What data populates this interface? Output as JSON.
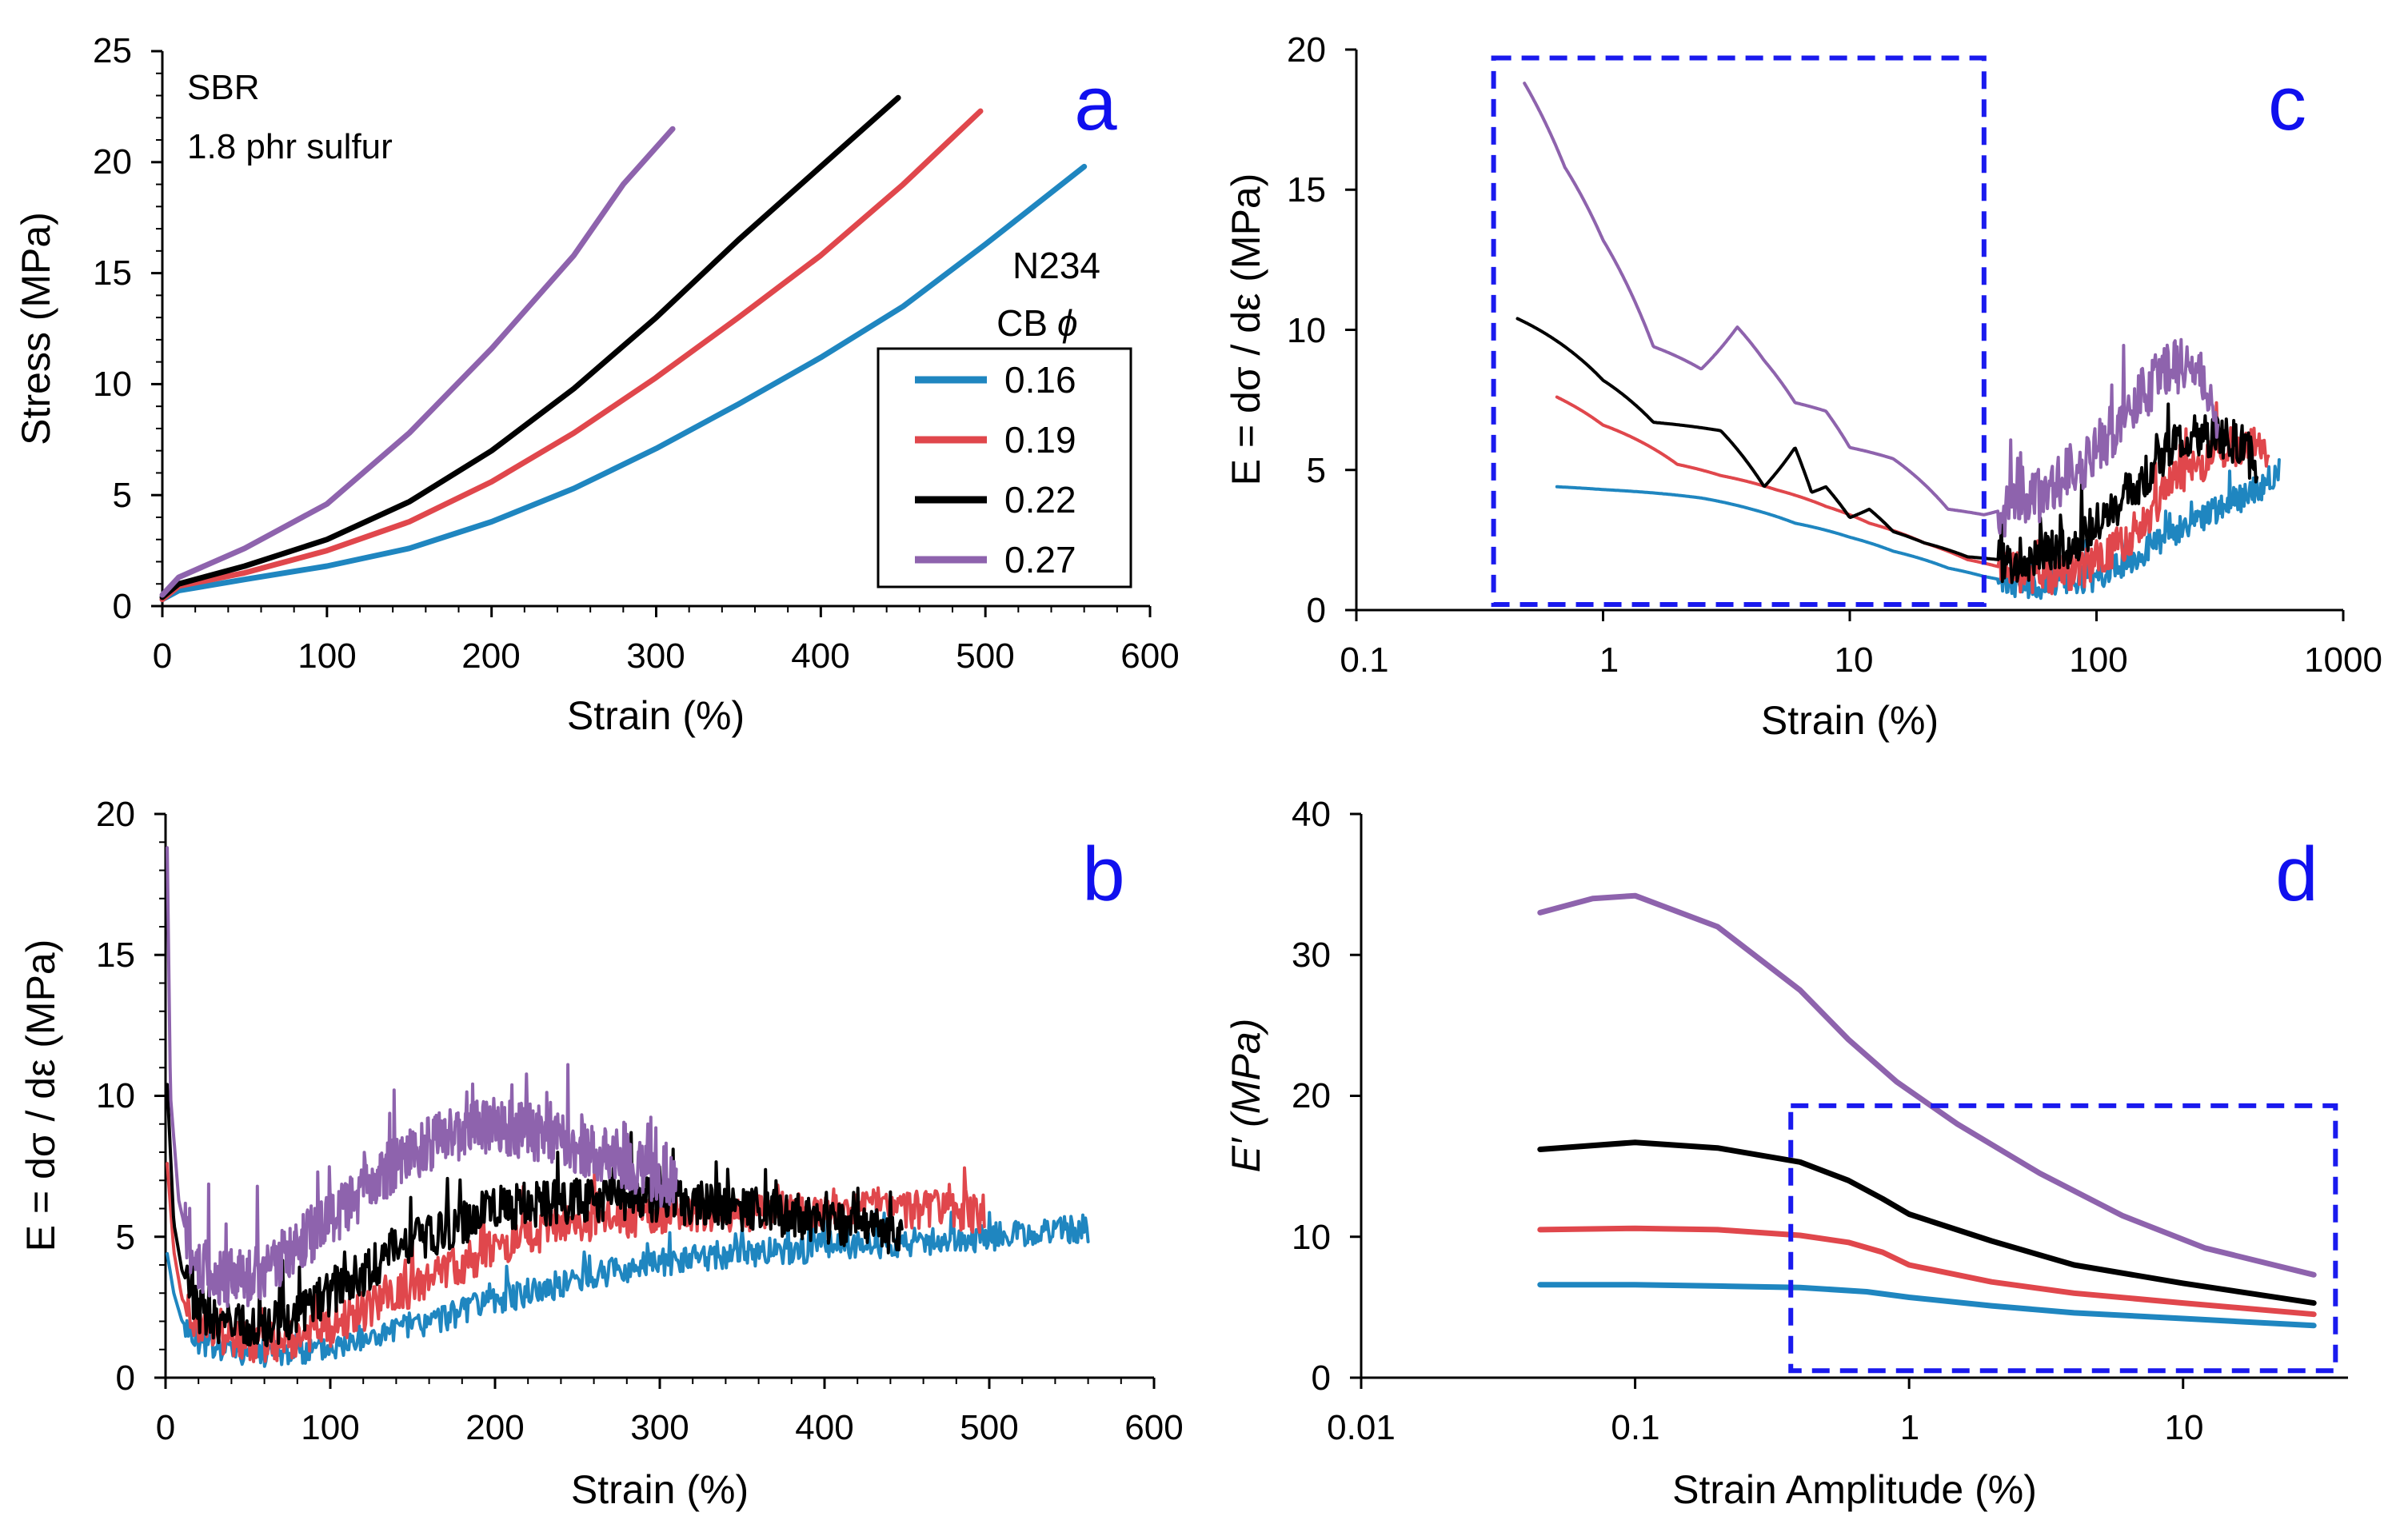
{
  "colors": {
    "0.16": "#1f86c0",
    "0.19": "#e0474c",
    "0.22": "#000000",
    "0.27": "#8e63ad",
    "box": "#1a1aee",
    "letter": "#1010ee"
  },
  "legend": {
    "header_line1": "N234",
    "header_line2": "CB",
    "header_symbol": "ϕ",
    "entries": [
      "0.16",
      "0.19",
      "0.22",
      "0.27"
    ]
  },
  "chart_data": [
    {
      "id": "a",
      "panel_label": "a",
      "type": "line",
      "xlabel": "Strain (%)",
      "ylabel": "Stress (MPa)",
      "xlim": [
        0,
        600
      ],
      "ylim": [
        0,
        25
      ],
      "xticks": [
        "0",
        "100",
        "200",
        "300",
        "400",
        "500",
        "600"
      ],
      "yticks": [
        "0",
        "5",
        "10",
        "15",
        "20",
        "25"
      ],
      "annotations": [
        "SBR",
        "1.8 phr sulfur"
      ],
      "series": [
        {
          "name": "0.16",
          "x": [
            0,
            10,
            50,
            100,
            150,
            200,
            250,
            300,
            350,
            400,
            450,
            500,
            560
          ],
          "y": [
            0.3,
            0.7,
            1.2,
            1.8,
            2.6,
            3.8,
            5.3,
            7.1,
            9.1,
            11.2,
            13.5,
            16.3,
            19.8
          ]
        },
        {
          "name": "0.19",
          "x": [
            0,
            10,
            50,
            100,
            150,
            200,
            250,
            300,
            350,
            400,
            450,
            497
          ],
          "y": [
            0.3,
            0.9,
            1.5,
            2.5,
            3.8,
            5.6,
            7.8,
            10.3,
            13.0,
            15.8,
            19.0,
            22.3
          ]
        },
        {
          "name": "0.22",
          "x": [
            0,
            10,
            50,
            100,
            150,
            200,
            250,
            300,
            350,
            400,
            447
          ],
          "y": [
            0.4,
            1.0,
            1.8,
            3.0,
            4.7,
            7.0,
            9.8,
            13.0,
            16.5,
            19.8,
            22.9
          ]
        },
        {
          "name": "0.27",
          "x": [
            0,
            10,
            50,
            100,
            150,
            200,
            250,
            280,
            310
          ],
          "y": [
            0.5,
            1.3,
            2.6,
            4.6,
            7.8,
            11.6,
            15.8,
            19.0,
            21.5
          ]
        }
      ]
    },
    {
      "id": "b",
      "panel_label": "b",
      "type": "line",
      "xlabel": "Strain (%)",
      "ylabel": "E = dσ / dε (MPa)",
      "xlim": [
        0,
        600
      ],
      "ylim": [
        0,
        20
      ],
      "xticks": [
        "0",
        "100",
        "200",
        "300",
        "400",
        "500",
        "600"
      ],
      "yticks": [
        "0",
        "5",
        "10",
        "15",
        "20"
      ],
      "series": [
        {
          "name": "0.16",
          "x": [
            1,
            5,
            10,
            20,
            40,
            60,
            80,
            100,
            150,
            200,
            250,
            300,
            350,
            400,
            450,
            500,
            540,
            560
          ],
          "y": [
            4.4,
            3.0,
            2.0,
            1.3,
            1.0,
            0.9,
            0.9,
            1.1,
            1.8,
            2.7,
            3.5,
            4.1,
            4.4,
            4.6,
            4.8,
            5.0,
            5.2,
            5.3
          ],
          "noise": 0.5
        },
        {
          "name": "0.19",
          "x": [
            1,
            5,
            10,
            20,
            40,
            60,
            80,
            100,
            150,
            200,
            250,
            300,
            350,
            400,
            450,
            497
          ],
          "y": [
            7.6,
            4.5,
            2.8,
            1.8,
            1.3,
            1.2,
            1.4,
            1.8,
            3.2,
            4.6,
            5.5,
            5.8,
            5.9,
            6.0,
            6.0,
            5.8
          ],
          "noise": 0.7
        },
        {
          "name": "0.22",
          "x": [
            1,
            5,
            10,
            20,
            40,
            60,
            80,
            100,
            150,
            200,
            250,
            300,
            350,
            400,
            447
          ],
          "y": [
            10.4,
            5.5,
            3.8,
            2.4,
            1.8,
            1.8,
            2.3,
            3.0,
            4.8,
            6.0,
            6.3,
            6.3,
            6.0,
            5.6,
            5.0
          ],
          "noise": 0.8
        },
        {
          "name": "0.27",
          "x": [
            1,
            3,
            8,
            15,
            30,
            50,
            70,
            100,
            130,
            170,
            200,
            230,
            260,
            290,
            310
          ],
          "y": [
            18.8,
            10.0,
            6.3,
            4.5,
            3.5,
            3.5,
            4.2,
            5.6,
            7.2,
            8.6,
            9.0,
            8.6,
            8.0,
            7.3,
            6.8
          ],
          "noise": 1.0
        }
      ]
    },
    {
      "id": "c",
      "panel_label": "c",
      "type": "line",
      "xlabel": "Strain (%)",
      "ylabel": "E = dσ / dε (MPa)",
      "xscale": "log",
      "xlim": [
        0.1,
        1000
      ],
      "ylim": [
        0,
        20
      ],
      "xticks": [
        "0.1",
        "1",
        "10",
        "100",
        "1000"
      ],
      "yticks": [
        "0",
        "5",
        "10",
        "15",
        "20"
      ],
      "highlight_box": {
        "x": [
          0.36,
          35
        ],
        "y": [
          0.2,
          19.7
        ]
      },
      "series": [
        {
          "name": "0.16",
          "x": [
            0.65,
            1,
            2,
            2.5,
            4,
            6,
            10,
            15,
            25,
            35,
            50,
            70,
            100,
            150,
            200,
            300,
            400,
            500,
            550
          ],
          "y": [
            4.4,
            4.3,
            4.1,
            4.0,
            3.6,
            3.1,
            2.6,
            2.1,
            1.5,
            1.2,
            0.9,
            0.9,
            1.2,
            2.0,
            2.7,
            3.5,
            4.1,
            4.6,
            5.0
          ],
          "noise_from": 40,
          "noise": 0.5
        },
        {
          "name": "0.19",
          "x": [
            0.65,
            1,
            2,
            3,
            5,
            8,
            12,
            20,
            30,
            50,
            70,
            100,
            150,
            200,
            300,
            400,
            497
          ],
          "y": [
            7.6,
            6.6,
            5.2,
            4.8,
            4.3,
            3.7,
            3.1,
            2.4,
            1.8,
            1.3,
            1.2,
            1.7,
            3.0,
            4.5,
            5.6,
            5.9,
            5.8
          ],
          "noise_from": 40,
          "noise": 0.7
        },
        {
          "name": "0.22",
          "x": [
            0.45,
            1,
            1.6,
            3,
            4.5,
            6,
            7,
            8,
            10,
            12,
            15,
            20,
            30,
            50,
            70,
            100,
            150,
            200,
            300,
            400,
            447
          ],
          "y": [
            10.4,
            8.2,
            6.7,
            6.4,
            4.4,
            5.8,
            4.2,
            4.4,
            3.3,
            3.6,
            2.8,
            2.4,
            1.9,
            1.7,
            2.1,
            3.0,
            4.6,
            6.0,
            6.3,
            5.8,
            5.0
          ],
          "noise_from": 40,
          "noise": 0.8
        },
        {
          "name": "0.27",
          "x": [
            0.48,
            0.7,
            1,
            1.6,
            2.5,
            3.5,
            4.5,
            6,
            8,
            10,
            15,
            25,
            35,
            50,
            70,
            100,
            150,
            200,
            250,
            310
          ],
          "y": [
            18.8,
            15.8,
            13.2,
            9.4,
            8.6,
            10.1,
            8.9,
            7.4,
            7.1,
            5.8,
            5.4,
            3.6,
            3.4,
            3.8,
            4.6,
            5.8,
            7.6,
            8.8,
            8.6,
            7.0
          ],
          "noise_from": 40,
          "noise": 1.0
        }
      ]
    },
    {
      "id": "d",
      "panel_label": "d",
      "type": "line",
      "xlabel": "Strain Amplitude (%)",
      "ylabel": "E′ (MPa)",
      "xscale": "log",
      "xlim": [
        0.01,
        40
      ],
      "ylim": [
        0,
        40
      ],
      "xticks": [
        "0.01",
        "0.1",
        "1",
        "10"
      ],
      "yticks": [
        "0",
        "10",
        "20",
        "30",
        "40"
      ],
      "highlight_box": {
        "x": [
          0.37,
          36
        ],
        "y": [
          0.5,
          19.3
        ]
      },
      "series": [
        {
          "name": "0.16",
          "x": [
            0.045,
            0.1,
            0.2,
            0.4,
            0.7,
            1,
            2,
            4,
            10,
            30
          ],
          "y": [
            6.6,
            6.6,
            6.5,
            6.4,
            6.1,
            5.7,
            5.1,
            4.6,
            4.2,
            3.7
          ]
        },
        {
          "name": "0.19",
          "x": [
            0.045,
            0.1,
            0.2,
            0.4,
            0.6,
            0.8,
            1,
            2,
            4,
            10,
            30
          ],
          "y": [
            10.5,
            10.6,
            10.5,
            10.1,
            9.6,
            8.9,
            8.0,
            6.8,
            6.0,
            5.3,
            4.5
          ]
        },
        {
          "name": "0.22",
          "x": [
            0.045,
            0.1,
            0.2,
            0.4,
            0.6,
            0.8,
            1,
            2,
            4,
            10,
            30
          ],
          "y": [
            16.2,
            16.7,
            16.3,
            15.3,
            14.0,
            12.7,
            11.6,
            9.7,
            8.0,
            6.7,
            5.3
          ]
        },
        {
          "name": "0.27",
          "x": [
            0.045,
            0.07,
            0.1,
            0.2,
            0.4,
            0.6,
            0.9,
            1.5,
            3,
            6,
            12,
            30
          ],
          "y": [
            33.0,
            34.0,
            34.2,
            32.0,
            27.5,
            24.0,
            21.0,
            18.0,
            14.5,
            11.5,
            9.2,
            7.3
          ]
        }
      ]
    }
  ]
}
